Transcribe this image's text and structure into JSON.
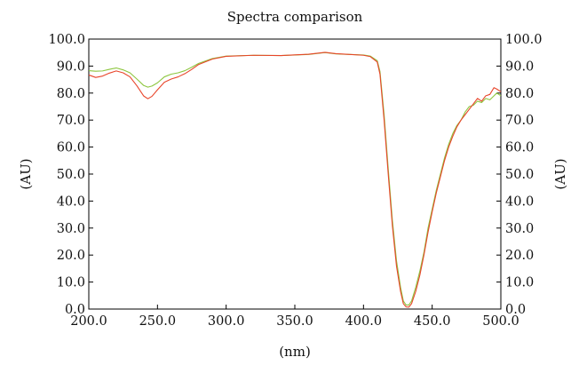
{
  "chart_data": {
    "type": "line",
    "title": "Spectra comparison",
    "xlabel": "(nm)",
    "ylabel_left": "(AU)",
    "ylabel_right": "(AU)",
    "xlim": [
      200,
      500
    ],
    "ylim": [
      0,
      100
    ],
    "x_ticks": [
      "200.0",
      "250.0",
      "300.0",
      "350.0",
      "400.0",
      "450.0",
      "500.0"
    ],
    "y_ticks": [
      "0.0",
      "10.0",
      "20.0",
      "30.0",
      "40.0",
      "50.0",
      "60.0",
      "70.0",
      "80.0",
      "90.0",
      "100.0"
    ],
    "grid": false,
    "series": [
      {
        "color": "#8dc63f",
        "points": [
          [
            200,
            88.3
          ],
          [
            205,
            88.1
          ],
          [
            210,
            88.2
          ],
          [
            215,
            88.8
          ],
          [
            220,
            89.3
          ],
          [
            225,
            88.6
          ],
          [
            230,
            87.5
          ],
          [
            235,
            85.2
          ],
          [
            240,
            82.8
          ],
          [
            243,
            82.2
          ],
          [
            246,
            82.6
          ],
          [
            250,
            83.8
          ],
          [
            255,
            86.0
          ],
          [
            260,
            87.0
          ],
          [
            265,
            87.5
          ],
          [
            270,
            88.3
          ],
          [
            275,
            89.6
          ],
          [
            280,
            91.0
          ],
          [
            290,
            92.8
          ],
          [
            300,
            93.7
          ],
          [
            320,
            94.0
          ],
          [
            340,
            93.9
          ],
          [
            360,
            94.3
          ],
          [
            372,
            95.0
          ],
          [
            380,
            94.5
          ],
          [
            390,
            94.3
          ],
          [
            400,
            94.1
          ],
          [
            405,
            93.7
          ],
          [
            410,
            92.0
          ],
          [
            412,
            88.0
          ],
          [
            415,
            72.0
          ],
          [
            418,
            52.0
          ],
          [
            421,
            33.0
          ],
          [
            424,
            18.0
          ],
          [
            427,
            8.0
          ],
          [
            429,
            3.0
          ],
          [
            431,
            1.5
          ],
          [
            433,
            1.5
          ],
          [
            435,
            3.0
          ],
          [
            438,
            8.0
          ],
          [
            441,
            14.0
          ],
          [
            444,
            21.0
          ],
          [
            447,
            30.0
          ],
          [
            450,
            37.0
          ],
          [
            453,
            44.0
          ],
          [
            456,
            50.0
          ],
          [
            459,
            56.0
          ],
          [
            462,
            61.0
          ],
          [
            465,
            65.0
          ],
          [
            468,
            68.0
          ],
          [
            471,
            70.0
          ],
          [
            474,
            73.0
          ],
          [
            477,
            75.0
          ],
          [
            480,
            75.5
          ],
          [
            483,
            77.0
          ],
          [
            486,
            76.5
          ],
          [
            489,
            78.0
          ],
          [
            492,
            77.5
          ],
          [
            495,
            79.0
          ],
          [
            497,
            80.0
          ],
          [
            500,
            79.0
          ]
        ]
      },
      {
        "color": "#e8452a",
        "points": [
          [
            200,
            86.7
          ],
          [
            205,
            85.8
          ],
          [
            210,
            86.3
          ],
          [
            215,
            87.4
          ],
          [
            220,
            88.2
          ],
          [
            225,
            87.5
          ],
          [
            230,
            86.0
          ],
          [
            235,
            82.7
          ],
          [
            240,
            78.9
          ],
          [
            243,
            77.9
          ],
          [
            246,
            78.8
          ],
          [
            250,
            81.2
          ],
          [
            255,
            84.0
          ],
          [
            260,
            85.2
          ],
          [
            265,
            86.0
          ],
          [
            270,
            87.2
          ],
          [
            275,
            88.8
          ],
          [
            280,
            90.6
          ],
          [
            290,
            92.6
          ],
          [
            300,
            93.6
          ],
          [
            320,
            94.0
          ],
          [
            340,
            93.9
          ],
          [
            360,
            94.4
          ],
          [
            372,
            95.1
          ],
          [
            380,
            94.6
          ],
          [
            390,
            94.3
          ],
          [
            400,
            94.0
          ],
          [
            405,
            93.5
          ],
          [
            410,
            91.5
          ],
          [
            412,
            87.0
          ],
          [
            415,
            70.0
          ],
          [
            418,
            50.0
          ],
          [
            421,
            31.0
          ],
          [
            424,
            16.0
          ],
          [
            427,
            6.5
          ],
          [
            429,
            2.0
          ],
          [
            431,
            0.8
          ],
          [
            433,
            0.7
          ],
          [
            435,
            2.0
          ],
          [
            438,
            6.5
          ],
          [
            441,
            12.5
          ],
          [
            444,
            20.0
          ],
          [
            447,
            28.5
          ],
          [
            450,
            36.0
          ],
          [
            453,
            43.0
          ],
          [
            456,
            49.0
          ],
          [
            459,
            55.0
          ],
          [
            462,
            60.0
          ],
          [
            465,
            64.0
          ],
          [
            468,
            67.5
          ],
          [
            471,
            70.0
          ],
          [
            474,
            72.0
          ],
          [
            477,
            74.0
          ],
          [
            480,
            76.0
          ],
          [
            483,
            78.0
          ],
          [
            486,
            77.0
          ],
          [
            489,
            79.0
          ],
          [
            492,
            79.5
          ],
          [
            495,
            82.0
          ],
          [
            497,
            81.5
          ],
          [
            500,
            80.5
          ]
        ]
      }
    ]
  }
}
